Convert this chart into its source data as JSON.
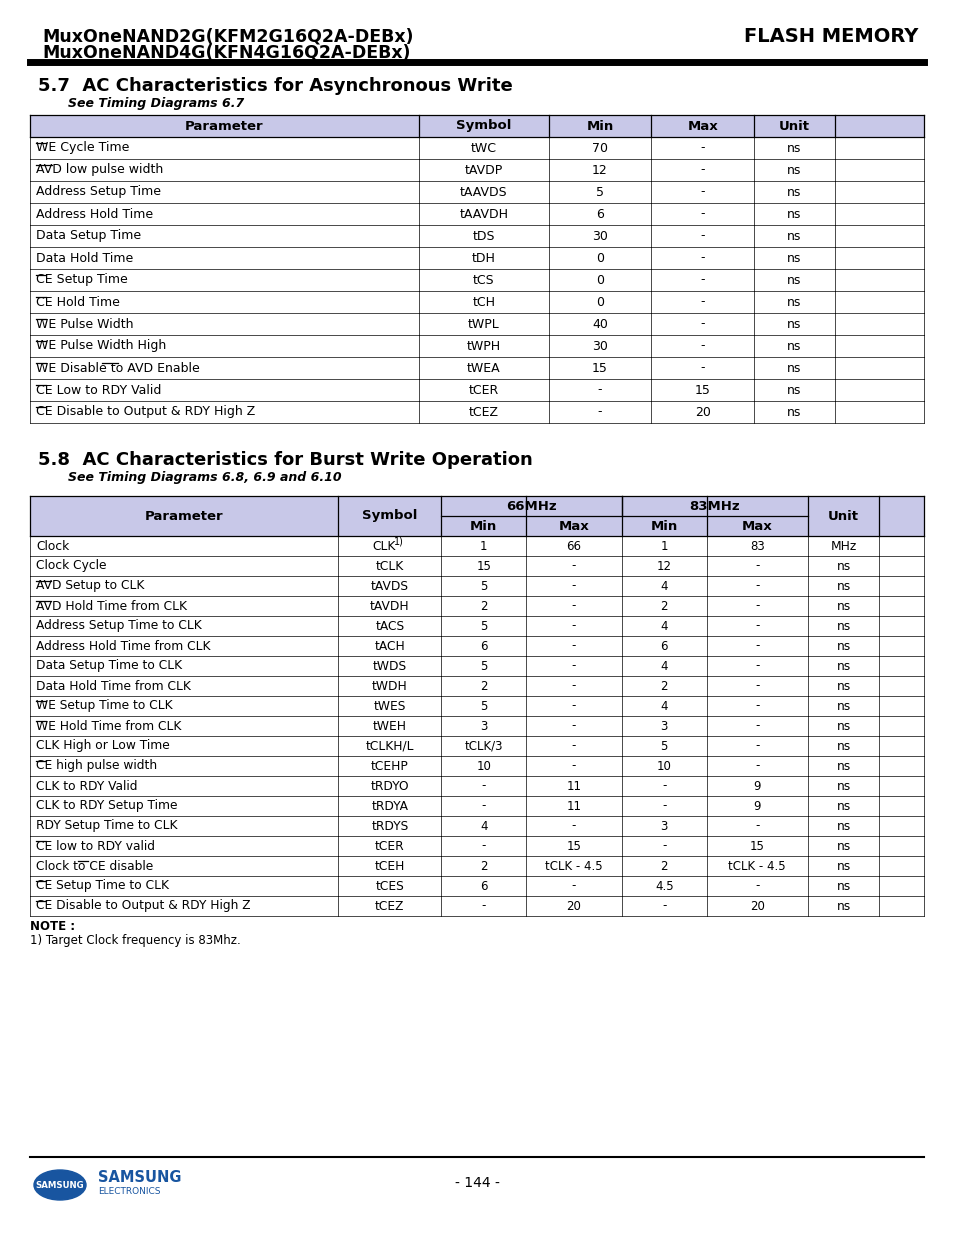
{
  "header_line1": "MuxOneNAND2G(KFM2G16Q2A-DEBx)",
  "header_line2": "MuxOneNAND4G(KFN4G16Q2A-DEBx)",
  "header_right": "FLASH MEMORY",
  "section1_title": "5.7  AC Characteristics for Asynchronous Write",
  "section1_subtitle": "See Timing Diagrams 6.7",
  "section2_title": "5.8  AC Characteristics for Burst Write Operation",
  "section2_subtitle": "See Timing Diagrams 6.8, 6.9 and 6.10",
  "header_bg": "#c8c8e8",
  "bg_color": "#ffffff",
  "page_number": "- 144 -",
  "table1_data": [
    [
      "WE Cycle Time",
      "tWC",
      "70",
      "-",
      "ns",
      [
        0
      ]
    ],
    [
      "AVD low pulse width",
      "tAVDP",
      "12",
      "-",
      "ns",
      [
        0
      ]
    ],
    [
      "Address Setup Time",
      "tAAVDS",
      "5",
      "-",
      "ns",
      []
    ],
    [
      "Address Hold Time",
      "tAAVDH",
      "6",
      "-",
      "ns",
      []
    ],
    [
      "Data Setup Time",
      "tDS",
      "30",
      "-",
      "ns",
      []
    ],
    [
      "Data Hold Time",
      "tDH",
      "0",
      "-",
      "ns",
      []
    ],
    [
      "CE Setup Time",
      "tCS",
      "0",
      "-",
      "ns",
      [
        0
      ]
    ],
    [
      "CE Hold Time",
      "tCH",
      "0",
      "-",
      "ns",
      [
        0
      ]
    ],
    [
      "WE Pulse Width",
      "tWPL",
      "40",
      "-",
      "ns",
      [
        0
      ]
    ],
    [
      "WE Pulse Width High",
      "tWPH",
      "30",
      "-",
      "ns",
      [
        0
      ]
    ],
    [
      "WE Disable to AVD Enable",
      "tWEA",
      "15",
      "-",
      "ns",
      [
        0,
        3
      ]
    ],
    [
      "CE Low to RDY Valid",
      "tCER",
      "-",
      "15",
      "ns",
      [
        0
      ]
    ],
    [
      "CE Disable to Output & RDY High Z",
      "tCEZ",
      "-",
      "20",
      "ns",
      [
        0
      ]
    ]
  ],
  "table2_data": [
    [
      "Clock",
      "CLK",
      "1",
      "66",
      "1",
      "83",
      "MHz",
      [],
      true
    ],
    [
      "Clock Cycle",
      "tCLK",
      "15",
      "-",
      "12",
      "-",
      "ns",
      [],
      false
    ],
    [
      "AVD Setup to CLK",
      "tAVDS",
      "5",
      "-",
      "4",
      "-",
      "ns",
      [
        0
      ],
      false
    ],
    [
      "AVD Hold Time from CLK",
      "tAVDH",
      "2",
      "-",
      "2",
      "-",
      "ns",
      [
        0
      ],
      false
    ],
    [
      "Address Setup Time to CLK",
      "tACS",
      "5",
      "-",
      "4",
      "-",
      "ns",
      [],
      false
    ],
    [
      "Address Hold Time from CLK",
      "tACH",
      "6",
      "-",
      "6",
      "-",
      "ns",
      [],
      false
    ],
    [
      "Data Setup Time to CLK",
      "tWDS",
      "5",
      "-",
      "4",
      "-",
      "ns",
      [],
      false
    ],
    [
      "Data Hold Time from CLK",
      "tWDH",
      "2",
      "-",
      "2",
      "-",
      "ns",
      [],
      false
    ],
    [
      "WE Setup Time to CLK",
      "tWES",
      "5",
      "-",
      "4",
      "-",
      "ns",
      [
        0
      ],
      false
    ],
    [
      "WE Hold Time from CLK",
      "tWEH",
      "3",
      "-",
      "3",
      "-",
      "ns",
      [
        0
      ],
      false
    ],
    [
      "CLK High or Low Time",
      "tCLKH/L",
      "tCLK/3",
      "-",
      "5",
      "-",
      "ns",
      [],
      false
    ],
    [
      "CE high pulse width",
      "tCEHP",
      "10",
      "-",
      "10",
      "-",
      "ns",
      [
        0
      ],
      false
    ],
    [
      "CLK to RDY Valid",
      "tRDYO",
      "-",
      "11",
      "-",
      "9",
      "ns",
      [],
      false
    ],
    [
      "CLK to RDY Setup Time",
      "tRDYA",
      "-",
      "11",
      "-",
      "9",
      "ns",
      [],
      false
    ],
    [
      "RDY Setup Time to CLK",
      "tRDYS",
      "4",
      "-",
      "3",
      "-",
      "ns",
      [],
      false
    ],
    [
      "CE low to RDY valid",
      "tCER",
      "-",
      "15",
      "-",
      "15",
      "ns",
      [
        0
      ],
      false
    ],
    [
      "Clock to CE disable",
      "tCEH",
      "2",
      "tCLK - 4.5",
      "2",
      "tCLK - 4.5",
      "ns",
      [
        2
      ],
      false
    ],
    [
      "CE Setup Time to CLK",
      "tCES",
      "6",
      "-",
      "4.5",
      "-",
      "ns",
      [
        0
      ],
      false
    ],
    [
      "CE Disable to Output & RDY High Z",
      "tCEZ",
      "-",
      "20",
      "-",
      "20",
      "ns",
      [
        0
      ],
      false
    ]
  ]
}
